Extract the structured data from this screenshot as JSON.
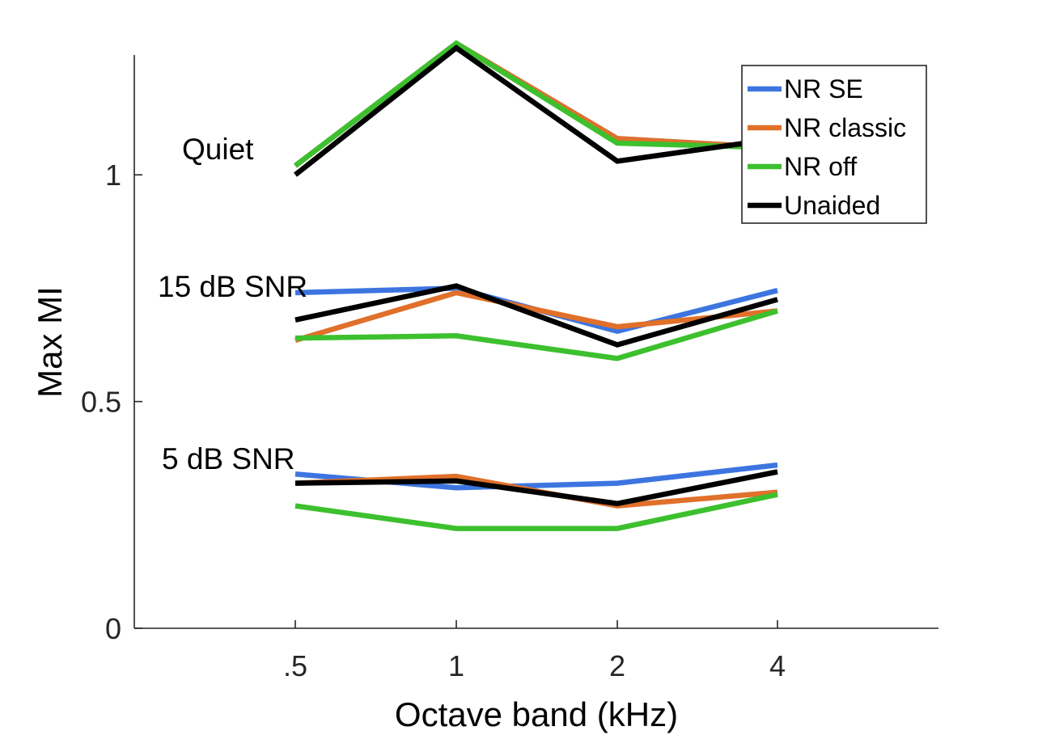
{
  "chart_data": {
    "type": "line",
    "categories": [
      ".5",
      "1",
      "2",
      "4"
    ],
    "xlabel": "Octave band (kHz)",
    "ylabel": "Max MI",
    "ylim": [
      0,
      1.3
    ],
    "yticks": [
      0,
      0.5,
      1
    ],
    "ytick_labels": [
      "0",
      "0.5",
      "1"
    ],
    "grid": false,
    "legend_position": "top-right",
    "legend": [
      {
        "name": "NR SE",
        "color": "#3d75e0"
      },
      {
        "name": "NR classic",
        "color": "#e0702a"
      },
      {
        "name": "NR off",
        "color": "#3dc02e"
      },
      {
        "name": "Unaided",
        "color": "#000000"
      }
    ],
    "groups": [
      {
        "label": "Quiet",
        "series": [
          {
            "legend_index": 0,
            "values": [
              1.02,
              1.29,
              1.08,
              1.06
            ]
          },
          {
            "legend_index": 1,
            "values": [
              1.02,
              1.29,
              1.08,
              1.06
            ]
          },
          {
            "legend_index": 2,
            "values": [
              1.02,
              1.29,
              1.07,
              1.06
            ]
          },
          {
            "legend_index": 3,
            "values": [
              1.0,
              1.28,
              1.03,
              1.08
            ]
          }
        ]
      },
      {
        "label": "15 dB SNR",
        "series": [
          {
            "legend_index": 0,
            "values": [
              0.74,
              0.75,
              0.655,
              0.745
            ]
          },
          {
            "legend_index": 1,
            "values": [
              0.635,
              0.74,
              0.665,
              0.7
            ]
          },
          {
            "legend_index": 2,
            "values": [
              0.64,
              0.645,
              0.595,
              0.7
            ]
          },
          {
            "legend_index": 3,
            "values": [
              0.68,
              0.755,
              0.625,
              0.725
            ]
          }
        ]
      },
      {
        "label": "5 dB SNR",
        "series": [
          {
            "legend_index": 0,
            "values": [
              0.34,
              0.31,
              0.32,
              0.36
            ]
          },
          {
            "legend_index": 1,
            "values": [
              0.32,
              0.335,
              0.27,
              0.3
            ]
          },
          {
            "legend_index": 2,
            "values": [
              0.27,
              0.22,
              0.22,
              0.295
            ]
          },
          {
            "legend_index": 3,
            "values": [
              0.32,
              0.325,
              0.275,
              0.345
            ]
          }
        ]
      }
    ]
  }
}
